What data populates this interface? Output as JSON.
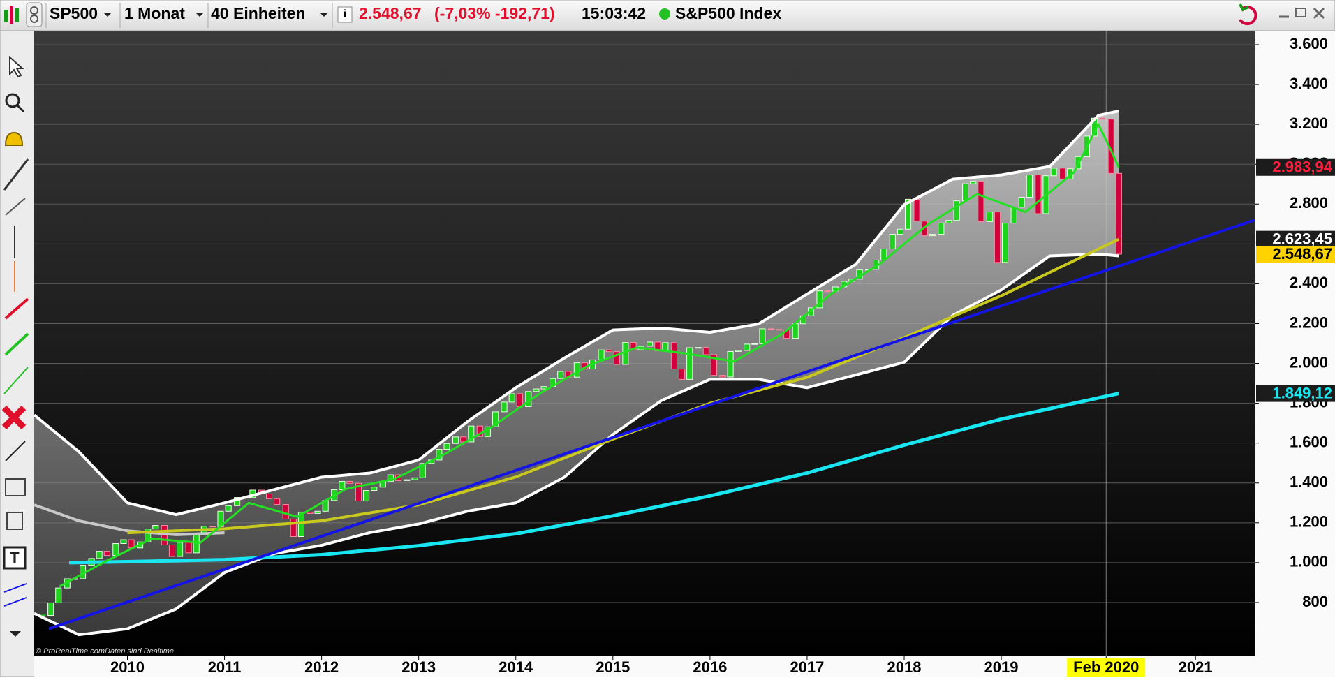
{
  "toolbar": {
    "symbol": "SP500",
    "period": "1 Monat",
    "units": "40 Einheiten",
    "price": "2.548,67",
    "change": "(-7,03% -192,71)",
    "time": "15:03:42",
    "instrument": "S&P500 Index"
  },
  "chart_data": {
    "type": "candlestick",
    "x": [
      2009.13,
      2009.21,
      2009.29,
      2009.38,
      2009.46,
      2009.54,
      2009.63,
      2009.71,
      2009.79,
      2009.88,
      2009.96,
      2010.04,
      2010.13,
      2010.21,
      2010.29,
      2010.38,
      2010.46,
      2010.54,
      2010.63,
      2010.71,
      2010.79,
      2010.88,
      2010.96,
      2011.04,
      2011.13,
      2011.21,
      2011.29,
      2011.38,
      2011.46,
      2011.54,
      2011.63,
      2011.71,
      2011.79,
      2011.88,
      2011.96,
      2012.04,
      2012.13,
      2012.21,
      2012.29,
      2012.38,
      2012.46,
      2012.54,
      2012.63,
      2012.71,
      2012.79,
      2012.88,
      2012.96,
      2013.04,
      2013.13,
      2013.21,
      2013.29,
      2013.38,
      2013.46,
      2013.54,
      2013.63,
      2013.71,
      2013.79,
      2013.88,
      2013.96,
      2014.04,
      2014.13,
      2014.21,
      2014.29,
      2014.38,
      2014.46,
      2014.54,
      2014.63,
      2014.71,
      2014.79,
      2014.88,
      2014.96,
      2015.04,
      2015.13,
      2015.21,
      2015.29,
      2015.38,
      2015.46,
      2015.54,
      2015.63,
      2015.71,
      2015.79,
      2015.88,
      2015.96,
      2016.04,
      2016.13,
      2016.21,
      2016.29,
      2016.38,
      2016.46,
      2016.54,
      2016.63,
      2016.71,
      2016.79,
      2016.88,
      2016.96,
      2017.04,
      2017.13,
      2017.21,
      2017.29,
      2017.38,
      2017.46,
      2017.54,
      2017.63,
      2017.71,
      2017.79,
      2017.88,
      2017.96,
      2018.04,
      2018.13,
      2018.21,
      2018.29,
      2018.38,
      2018.46,
      2018.54,
      2018.63,
      2018.71,
      2018.79,
      2018.88,
      2018.96,
      2019.04,
      2019.13,
      2019.21,
      2019.29,
      2019.38,
      2019.46,
      2019.54,
      2019.63,
      2019.71,
      2019.79,
      2019.88,
      2019.96,
      2020.04,
      2020.13,
      2020.21
    ],
    "values": [
      735,
      798,
      873,
      919,
      919,
      987,
      1021,
      1057,
      1036,
      1096,
      1115,
      1074,
      1104,
      1169,
      1187,
      1089,
      1031,
      1102,
      1049,
      1141,
      1183,
      1181,
      1258,
      1286,
      1327,
      1326,
      1364,
      1345,
      1321,
      1292,
      1219,
      1131,
      1253,
      1247,
      1258,
      1312,
      1366,
      1408,
      1398,
      1310,
      1362,
      1379,
      1407,
      1441,
      1412,
      1416,
      1426,
      1498,
      1515,
      1569,
      1598,
      1631,
      1606,
      1686,
      1633,
      1682,
      1757,
      1806,
      1848,
      1783,
      1859,
      1872,
      1884,
      1924,
      1960,
      1931,
      2003,
      1972,
      2018,
      2068,
      2059,
      1995,
      2105,
      2068,
      2086,
      2107,
      2063,
      2104,
      1972,
      1920,
      2079,
      2080,
      2044,
      1940,
      1932,
      2060,
      2065,
      2097,
      2099,
      2174,
      2171,
      2168,
      2126,
      2199,
      2239,
      2279,
      2364,
      2363,
      2384,
      2412,
      2423,
      2470,
      2472,
      2519,
      2575,
      2648,
      2674,
      2824,
      2714,
      2641,
      2648,
      2705,
      2718,
      2816,
      2902,
      2914,
      2712,
      2760,
      2507,
      2704,
      2784,
      2834,
      2946,
      2752,
      2942,
      2980,
      2926,
      2977,
      3038,
      3141,
      3231,
      3226,
      2954,
      2548.67
    ],
    "up_color": "#1ed21e",
    "down_color": "#d2003c",
    "band": {
      "color": "#ffffff",
      "x": [
        2009.04,
        2009.5,
        2010,
        2010.5,
        2011,
        2011.5,
        2012,
        2012.5,
        2013,
        2013.5,
        2014,
        2014.5,
        2015,
        2015.5,
        2016,
        2016.5,
        2017,
        2017.5,
        2018,
        2018.5,
        2019,
        2019.5,
        2020,
        2020.21
      ],
      "upper": [
        1741,
        1557,
        1300,
        1241,
        1300,
        1365,
        1429,
        1450,
        1515,
        1707,
        1878,
        2027,
        2168,
        2177,
        2156,
        2198,
        2348,
        2497,
        2797,
        2925,
        2946,
        2989,
        3245,
        3267
      ],
      "lower": [
        745,
        638,
        668,
        767,
        950,
        1044,
        1087,
        1151,
        1194,
        1258,
        1300,
        1429,
        1643,
        1814,
        1920,
        1920,
        1878,
        1942,
        2006,
        2241,
        2369,
        2540,
        2549,
        2540
      ]
    },
    "lines": [
      {
        "color": "#c8c8c8",
        "width": 4,
        "x": [
          2009.04,
          2009.5,
          2010,
          2010.5,
          2011
        ],
        "values": [
          1290,
          1210,
          1160,
          1140,
          1150
        ]
      },
      {
        "color": "#19e6f0",
        "width": 5,
        "x": [
          2009.4,
          2010,
          2011,
          2012,
          2013,
          2014,
          2015,
          2016,
          2017,
          2018,
          2019,
          2020.21
        ],
        "values": [
          1000,
          1005,
          1015,
          1040,
          1085,
          1145,
          1235,
          1335,
          1450,
          1590,
          1720,
          1849.12
        ]
      },
      {
        "color": "#c8c81e",
        "width": 4,
        "x": [
          2010,
          2011,
          2012,
          2013,
          2014,
          2015,
          2016,
          2017,
          2018,
          2019,
          2020.21
        ],
        "values": [
          1150,
          1170,
          1210,
          1290,
          1430,
          1620,
          1800,
          1930,
          2130,
          2340,
          2623.45
        ]
      },
      {
        "color": "#22e022",
        "width": 3,
        "x": [
          2009.3,
          2009.75,
          2010.25,
          2010.75,
          2011.25,
          2011.75,
          2012.25,
          2012.75,
          2013.25,
          2013.75,
          2014.25,
          2014.75,
          2015.25,
          2015.75,
          2016.25,
          2016.75,
          2017.25,
          2017.75,
          2018.25,
          2018.75,
          2019.25,
          2019.75,
          2020.0,
          2020.1,
          2020.21
        ],
        "values": [
          880,
          1000,
          1120,
          1100,
          1300,
          1230,
          1370,
          1420,
          1540,
          1680,
          1850,
          1990,
          2080,
          2050,
          2010,
          2150,
          2350,
          2500,
          2700,
          2850,
          2760,
          2960,
          3200,
          3100,
          2983.94
        ]
      },
      {
        "color": "#1414e6",
        "width": 4,
        "x": [
          2009.19,
          2021.61
        ],
        "values": [
          668,
          2720
        ]
      }
    ],
    "price_tags": [
      {
        "value": 2983.94,
        "label": "2.983,94",
        "bg": "#1c1c1c",
        "fg": "#ff1e3c"
      },
      {
        "value": 2623.45,
        "label": "2.623,45",
        "bg": "#1c1c1c",
        "fg": "#ffffff"
      },
      {
        "value": 2548.67,
        "label": "2.548,67",
        "bg": "#ffd200",
        "fg": "#000000"
      },
      {
        "value": 1849.12,
        "label": "1.849,12",
        "bg": "#1c1c1c",
        "fg": "#19e6f0"
      }
    ],
    "xlim": [
      2009.04,
      2021.61
    ],
    "xticks": [
      2010,
      2011,
      2012,
      2013,
      2014,
      2015,
      2016,
      2017,
      2018,
      2019,
      {
        "value": 2020.08,
        "label": "Feb 2020"
      },
      2021
    ],
    "ylim": [
      530,
      3670
    ],
    "yticks": [
      800,
      {
        "value": 1000,
        "label": "1.000"
      },
      {
        "value": 1200,
        "label": "1.200"
      },
      {
        "value": 1400,
        "label": "1.400"
      },
      {
        "value": 1600,
        "label": "1.600"
      },
      {
        "value": 1800,
        "label": "1.800"
      },
      {
        "value": 2000,
        "label": "2.000"
      },
      {
        "value": 2200,
        "label": "2.200"
      },
      {
        "value": 2400,
        "label": "2.400"
      },
      {
        "value": 2600,
        "label": "2.600"
      },
      {
        "value": 2800,
        "label": "2.800"
      },
      {
        "value": 3000,
        "label": "3.000"
      },
      {
        "value": 3200,
        "label": "3.200"
      },
      {
        "value": 3400,
        "label": "3.400"
      },
      {
        "value": 3600,
        "label": "3.600"
      }
    ],
    "grid": true,
    "credit": "© ProRealTime.com",
    "credit_note": "Daten sind Realtime"
  }
}
